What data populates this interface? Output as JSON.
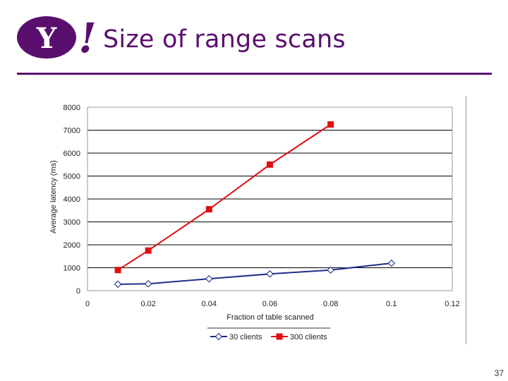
{
  "slide": {
    "title": "Size of range scans",
    "page_number": "37",
    "logo_text": "Y!"
  },
  "colors": {
    "brand": "#5a0f6e",
    "series_30": "#1f2f8a",
    "series_300": "#e01010"
  },
  "chart_data": {
    "type": "line",
    "xlabel": "Fraction of table scanned",
    "ylabel": "Average latency (ms)",
    "xlim": [
      0,
      0.12
    ],
    "ylim": [
      0,
      8000
    ],
    "xticks": [
      0,
      0.02,
      0.04,
      0.06,
      0.08,
      0.1,
      0.12
    ],
    "yticks": [
      0,
      1000,
      2000,
      3000,
      4000,
      5000,
      6000,
      7000,
      8000
    ],
    "grid": "horizontal",
    "legend_position": "bottom",
    "series": [
      {
        "name": "30 clients",
        "marker": "diamond-open",
        "x": [
          0.01,
          0.02,
          0.04,
          0.06,
          0.08,
          0.1
        ],
        "y": [
          280,
          300,
          520,
          730,
          900,
          1200
        ]
      },
      {
        "name": "300 clients",
        "marker": "square-filled",
        "x": [
          0.01,
          0.02,
          0.04,
          0.06,
          0.08
        ],
        "y": [
          900,
          1750,
          3550,
          5500,
          7250
        ]
      }
    ]
  }
}
